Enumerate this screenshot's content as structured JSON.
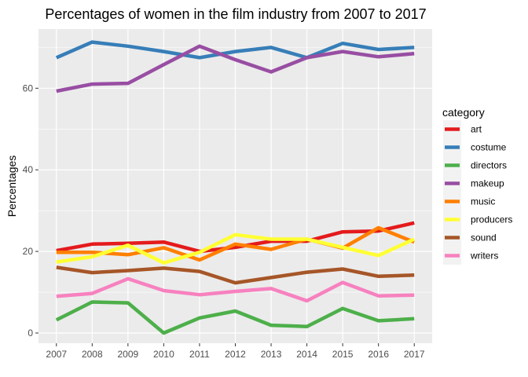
{
  "chart_data": {
    "type": "line",
    "title": "Percentages of women in the film industry from 2007 to 2017",
    "xlabel": "",
    "ylabel": "Percentages",
    "x": [
      2007,
      2008,
      2009,
      2010,
      2011,
      2012,
      2013,
      2014,
      2015,
      2016,
      2017
    ],
    "xlim": [
      2006.5,
      2017.5
    ],
    "ylim": [
      -2.5,
      74.5
    ],
    "yticks": [
      0,
      20,
      40,
      60
    ],
    "grid": true,
    "legend": {
      "title": "category",
      "placement": "right"
    },
    "series": [
      {
        "name": "art",
        "color": "#E41A1C",
        "values": [
          20.2,
          21.8,
          22.0,
          22.3,
          20.0,
          21.0,
          22.5,
          22.5,
          24.8,
          25.0,
          27.0
        ]
      },
      {
        "name": "costume",
        "color": "#377EB8",
        "values": [
          67.5,
          71.3,
          70.3,
          69.0,
          67.5,
          69.0,
          70.0,
          67.5,
          71.0,
          69.5,
          70.0
        ]
      },
      {
        "name": "directors",
        "color": "#4DAF4A",
        "values": [
          3.2,
          7.6,
          7.4,
          0.0,
          3.7,
          5.4,
          1.9,
          1.6,
          6.0,
          3.0,
          3.5
        ]
      },
      {
        "name": "makeup",
        "color": "#984EA3",
        "values": [
          59.3,
          61.0,
          61.2,
          65.8,
          70.3,
          67.0,
          64.0,
          67.5,
          69.0,
          67.7,
          68.5
        ]
      },
      {
        "name": "music",
        "color": "#FF7F00",
        "values": [
          19.8,
          19.8,
          19.2,
          20.9,
          17.9,
          21.8,
          20.5,
          23.0,
          20.8,
          25.8,
          22.3
        ]
      },
      {
        "name": "producers",
        "color": "#FFFF33",
        "values": [
          17.4,
          18.7,
          21.5,
          17.2,
          19.8,
          24.1,
          23.0,
          23.0,
          21.0,
          19.0,
          23.0
        ]
      },
      {
        "name": "sound",
        "color": "#A65628",
        "values": [
          16.1,
          14.8,
          15.3,
          15.9,
          15.1,
          12.3,
          13.6,
          14.9,
          15.7,
          13.9,
          14.2
        ]
      },
      {
        "name": "writers",
        "color": "#F781BF",
        "values": [
          9.0,
          9.7,
          13.3,
          10.4,
          9.4,
          10.2,
          10.9,
          7.9,
          12.4,
          9.1,
          9.3
        ]
      }
    ]
  }
}
